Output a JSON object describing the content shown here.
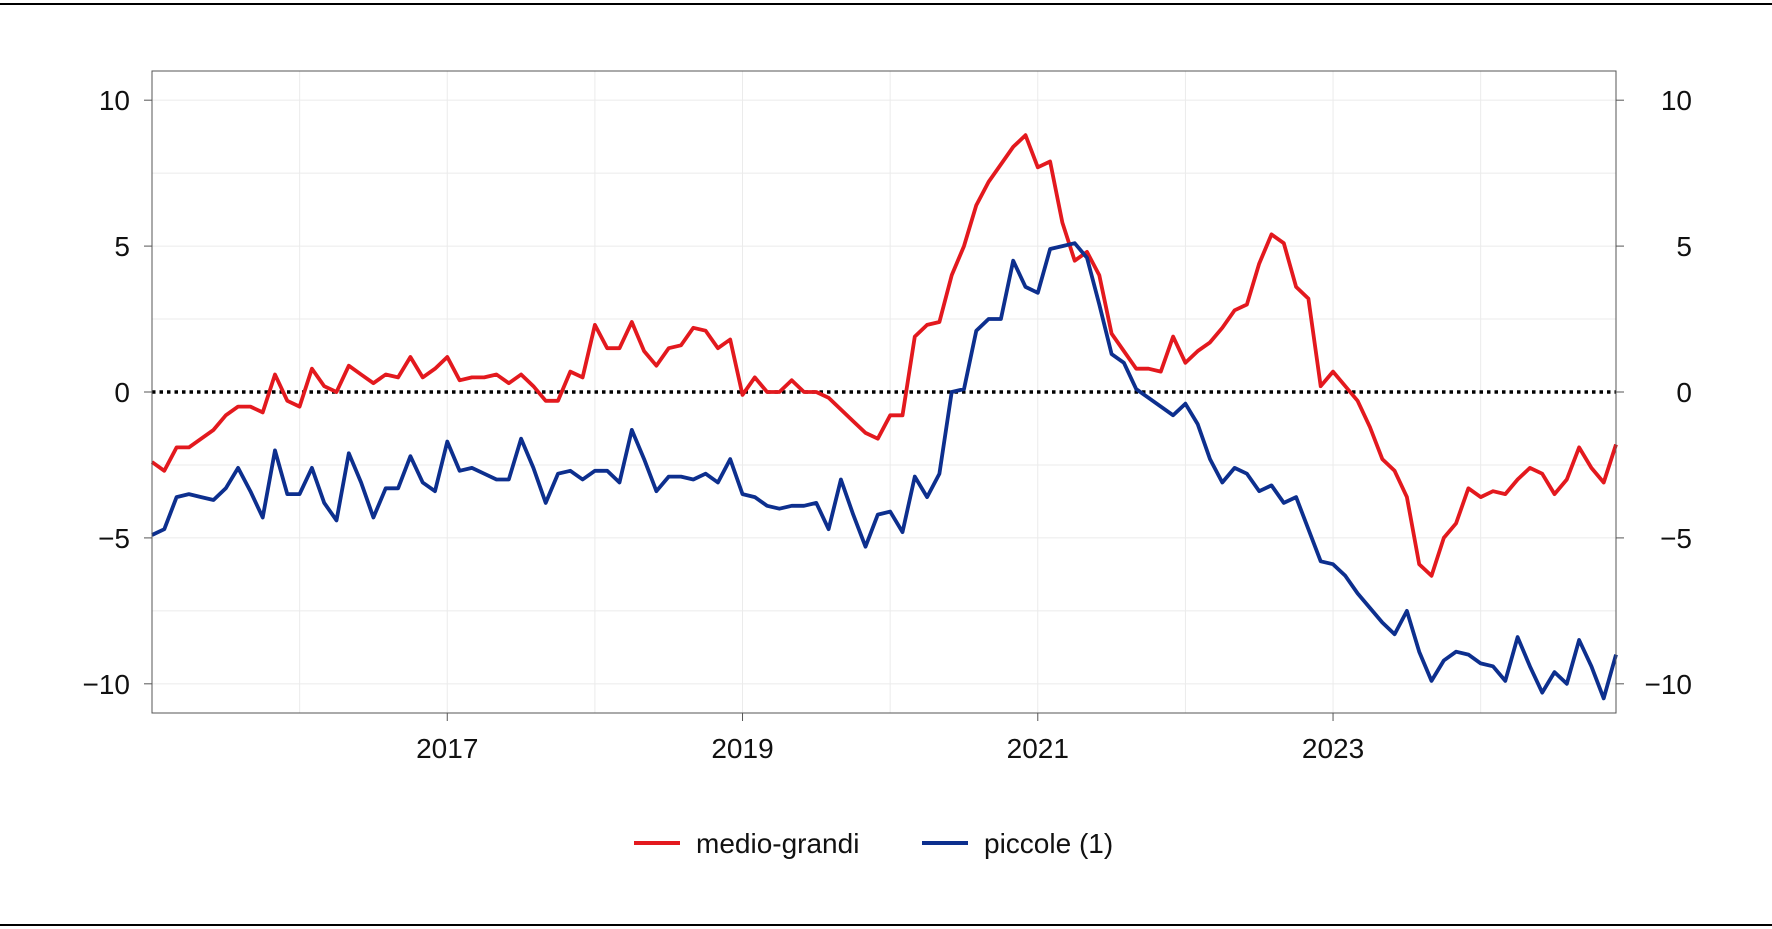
{
  "chart_data": {
    "type": "line",
    "title": "",
    "xlabel": "",
    "ylabel": "",
    "ylim": [
      -11,
      11
    ],
    "xlim": [
      "2015-01",
      "2024-12"
    ],
    "yticks": [
      -10,
      -5,
      0,
      5,
      10
    ],
    "yticks_labels": [
      "−10",
      "−5",
      "0",
      "5",
      "10"
    ],
    "xticks_labels": [
      "2017",
      "2019",
      "2021",
      "2023"
    ],
    "grid": true,
    "reference_line": {
      "y": 0,
      "style": "dotted"
    },
    "legend_position": "bottom-center",
    "series": [
      {
        "name": "medio-grandi",
        "color": "#e3191e",
        "points": [
          [
            "2015-01",
            -2.4
          ],
          [
            "2015-02",
            -2.7
          ],
          [
            "2015-03",
            -1.9
          ],
          [
            "2015-04",
            -1.9
          ],
          [
            "2015-05",
            -1.6
          ],
          [
            "2015-06",
            -1.3
          ],
          [
            "2015-07",
            -0.8
          ],
          [
            "2015-08",
            -0.5
          ],
          [
            "2015-09",
            -0.5
          ],
          [
            "2015-10",
            -0.7
          ],
          [
            "2015-11",
            0.6
          ],
          [
            "2015-12",
            -0.3
          ],
          [
            "2016-01",
            -0.5
          ],
          [
            "2016-02",
            0.8
          ],
          [
            "2016-03",
            0.2
          ],
          [
            "2016-04",
            0.0
          ],
          [
            "2016-05",
            0.9
          ],
          [
            "2016-06",
            0.6
          ],
          [
            "2016-07",
            0.3
          ],
          [
            "2016-08",
            0.6
          ],
          [
            "2016-09",
            0.5
          ],
          [
            "2016-10",
            1.2
          ],
          [
            "2016-11",
            0.5
          ],
          [
            "2016-12",
            0.8
          ],
          [
            "2017-01",
            1.2
          ],
          [
            "2017-02",
            0.4
          ],
          [
            "2017-03",
            0.5
          ],
          [
            "2017-04",
            0.5
          ],
          [
            "2017-05",
            0.6
          ],
          [
            "2017-06",
            0.3
          ],
          [
            "2017-07",
            0.6
          ],
          [
            "2017-08",
            0.2
          ],
          [
            "2017-09",
            -0.3
          ],
          [
            "2017-10",
            -0.3
          ],
          [
            "2017-11",
            0.7
          ],
          [
            "2017-12",
            0.5
          ],
          [
            "2018-01",
            2.3
          ],
          [
            "2018-02",
            1.5
          ],
          [
            "2018-03",
            1.5
          ],
          [
            "2018-04",
            2.4
          ],
          [
            "2018-05",
            1.4
          ],
          [
            "2018-06",
            0.9
          ],
          [
            "2018-07",
            1.5
          ],
          [
            "2018-08",
            1.6
          ],
          [
            "2018-09",
            2.2
          ],
          [
            "2018-10",
            2.1
          ],
          [
            "2018-11",
            1.5
          ],
          [
            "2018-12",
            1.8
          ],
          [
            "2019-01",
            -0.1
          ],
          [
            "2019-02",
            0.5
          ],
          [
            "2019-03",
            0.0
          ],
          [
            "2019-04",
            0.0
          ],
          [
            "2019-05",
            0.4
          ],
          [
            "2019-06",
            0.0
          ],
          [
            "2019-07",
            0.0
          ],
          [
            "2019-08",
            -0.2
          ],
          [
            "2019-09",
            -0.6
          ],
          [
            "2019-10",
            -1.0
          ],
          [
            "2019-11",
            -1.4
          ],
          [
            "2019-12",
            -1.6
          ],
          [
            "2020-01",
            -0.8
          ],
          [
            "2020-02",
            -0.8
          ],
          [
            "2020-03",
            1.9
          ],
          [
            "2020-04",
            2.3
          ],
          [
            "2020-05",
            2.4
          ],
          [
            "2020-06",
            4.0
          ],
          [
            "2020-07",
            5.0
          ],
          [
            "2020-08",
            6.4
          ],
          [
            "2020-09",
            7.2
          ],
          [
            "2020-10",
            7.8
          ],
          [
            "2020-11",
            8.4
          ],
          [
            "2020-12",
            8.8
          ],
          [
            "2021-01",
            7.7
          ],
          [
            "2021-02",
            7.9
          ],
          [
            "2021-03",
            5.8
          ],
          [
            "2021-04",
            4.5
          ],
          [
            "2021-05",
            4.8
          ],
          [
            "2021-06",
            4.0
          ],
          [
            "2021-07",
            2.0
          ],
          [
            "2021-08",
            1.4
          ],
          [
            "2021-09",
            0.8
          ],
          [
            "2021-10",
            0.8
          ],
          [
            "2021-11",
            0.7
          ],
          [
            "2021-12",
            1.9
          ],
          [
            "2022-01",
            1.0
          ],
          [
            "2022-02",
            1.4
          ],
          [
            "2022-03",
            1.7
          ],
          [
            "2022-04",
            2.2
          ],
          [
            "2022-05",
            2.8
          ],
          [
            "2022-06",
            3.0
          ],
          [
            "2022-07",
            4.4
          ],
          [
            "2022-08",
            5.4
          ],
          [
            "2022-09",
            5.1
          ],
          [
            "2022-10",
            3.6
          ],
          [
            "2022-11",
            3.2
          ],
          [
            "2022-12",
            0.2
          ],
          [
            "2023-01",
            0.7
          ],
          [
            "2023-02",
            0.2
          ],
          [
            "2023-03",
            -0.3
          ],
          [
            "2023-04",
            -1.2
          ],
          [
            "2023-05",
            -2.3
          ],
          [
            "2023-06",
            -2.7
          ],
          [
            "2023-07",
            -3.6
          ],
          [
            "2023-08",
            -5.9
          ],
          [
            "2023-09",
            -6.3
          ],
          [
            "2023-10",
            -5.0
          ],
          [
            "2023-11",
            -4.5
          ],
          [
            "2023-12",
            -3.3
          ],
          [
            "2024-01",
            -3.6
          ],
          [
            "2024-02",
            -3.4
          ],
          [
            "2024-03",
            -3.5
          ],
          [
            "2024-04",
            -3.0
          ],
          [
            "2024-05",
            -2.6
          ],
          [
            "2024-06",
            -2.8
          ],
          [
            "2024-07",
            -3.5
          ],
          [
            "2024-08",
            -3.0
          ],
          [
            "2024-09",
            -1.9
          ],
          [
            "2024-10",
            -2.6
          ],
          [
            "2024-11",
            -3.1
          ],
          [
            "2024-12",
            -1.8
          ]
        ]
      },
      {
        "name": "piccole (1)",
        "color": "#0d2f8e",
        "points": [
          [
            "2015-01",
            -4.9
          ],
          [
            "2015-02",
            -4.7
          ],
          [
            "2015-03",
            -3.6
          ],
          [
            "2015-04",
            -3.5
          ],
          [
            "2015-05",
            -3.6
          ],
          [
            "2015-06",
            -3.7
          ],
          [
            "2015-07",
            -3.3
          ],
          [
            "2015-08",
            -2.6
          ],
          [
            "2015-09",
            -3.4
          ],
          [
            "2015-10",
            -4.3
          ],
          [
            "2015-11",
            -2.0
          ],
          [
            "2015-12",
            -3.5
          ],
          [
            "2016-01",
            -3.5
          ],
          [
            "2016-02",
            -2.6
          ],
          [
            "2016-03",
            -3.8
          ],
          [
            "2016-04",
            -4.4
          ],
          [
            "2016-05",
            -2.1
          ],
          [
            "2016-06",
            -3.1
          ],
          [
            "2016-07",
            -4.3
          ],
          [
            "2016-08",
            -3.3
          ],
          [
            "2016-09",
            -3.3
          ],
          [
            "2016-10",
            -2.2
          ],
          [
            "2016-11",
            -3.1
          ],
          [
            "2016-12",
            -3.4
          ],
          [
            "2017-01",
            -1.7
          ],
          [
            "2017-02",
            -2.7
          ],
          [
            "2017-03",
            -2.6
          ],
          [
            "2017-04",
            -2.8
          ],
          [
            "2017-05",
            -3.0
          ],
          [
            "2017-06",
            -3.0
          ],
          [
            "2017-07",
            -1.6
          ],
          [
            "2017-08",
            -2.6
          ],
          [
            "2017-09",
            -3.8
          ],
          [
            "2017-10",
            -2.8
          ],
          [
            "2017-11",
            -2.7
          ],
          [
            "2017-12",
            -3.0
          ],
          [
            "2018-01",
            -2.7
          ],
          [
            "2018-02",
            -2.7
          ],
          [
            "2018-03",
            -3.1
          ],
          [
            "2018-04",
            -1.3
          ],
          [
            "2018-05",
            -2.3
          ],
          [
            "2018-06",
            -3.4
          ],
          [
            "2018-07",
            -2.9
          ],
          [
            "2018-08",
            -2.9
          ],
          [
            "2018-09",
            -3.0
          ],
          [
            "2018-10",
            -2.8
          ],
          [
            "2018-11",
            -3.1
          ],
          [
            "2018-12",
            -2.3
          ],
          [
            "2019-01",
            -3.5
          ],
          [
            "2019-02",
            -3.6
          ],
          [
            "2019-03",
            -3.9
          ],
          [
            "2019-04",
            -4.0
          ],
          [
            "2019-05",
            -3.9
          ],
          [
            "2019-06",
            -3.9
          ],
          [
            "2019-07",
            -3.8
          ],
          [
            "2019-08",
            -4.7
          ],
          [
            "2019-09",
            -3.0
          ],
          [
            "2019-10",
            -4.2
          ],
          [
            "2019-11",
            -5.3
          ],
          [
            "2019-12",
            -4.2
          ],
          [
            "2020-01",
            -4.1
          ],
          [
            "2020-02",
            -4.8
          ],
          [
            "2020-03",
            -2.9
          ],
          [
            "2020-04",
            -3.6
          ],
          [
            "2020-05",
            -2.8
          ],
          [
            "2020-06",
            0.0
          ],
          [
            "2020-07",
            0.1
          ],
          [
            "2020-08",
            2.1
          ],
          [
            "2020-09",
            2.5
          ],
          [
            "2020-10",
            2.5
          ],
          [
            "2020-11",
            4.5
          ],
          [
            "2020-12",
            3.6
          ],
          [
            "2021-01",
            3.4
          ],
          [
            "2021-02",
            4.9
          ],
          [
            "2021-03",
            5.0
          ],
          [
            "2021-04",
            5.1
          ],
          [
            "2021-05",
            4.6
          ],
          [
            "2021-06",
            3.0
          ],
          [
            "2021-07",
            1.3
          ],
          [
            "2021-08",
            1.0
          ],
          [
            "2021-09",
            0.1
          ],
          [
            "2021-10",
            -0.2
          ],
          [
            "2021-11",
            -0.5
          ],
          [
            "2021-12",
            -0.8
          ],
          [
            "2022-01",
            -0.4
          ],
          [
            "2022-02",
            -1.1
          ],
          [
            "2022-03",
            -2.3
          ],
          [
            "2022-04",
            -3.1
          ],
          [
            "2022-05",
            -2.6
          ],
          [
            "2022-06",
            -2.8
          ],
          [
            "2022-07",
            -3.4
          ],
          [
            "2022-08",
            -3.2
          ],
          [
            "2022-09",
            -3.8
          ],
          [
            "2022-10",
            -3.6
          ],
          [
            "2022-11",
            -4.7
          ],
          [
            "2022-12",
            -5.8
          ],
          [
            "2023-01",
            -5.9
          ],
          [
            "2023-02",
            -6.3
          ],
          [
            "2023-03",
            -6.9
          ],
          [
            "2023-04",
            -7.4
          ],
          [
            "2023-05",
            -7.9
          ],
          [
            "2023-06",
            -8.3
          ],
          [
            "2023-07",
            -7.5
          ],
          [
            "2023-08",
            -8.9
          ],
          [
            "2023-09",
            -9.9
          ],
          [
            "2023-10",
            -9.2
          ],
          [
            "2023-11",
            -8.9
          ],
          [
            "2023-12",
            -9.0
          ],
          [
            "2024-01",
            -9.3
          ],
          [
            "2024-02",
            -9.4
          ],
          [
            "2024-03",
            -9.9
          ],
          [
            "2024-04",
            -8.4
          ],
          [
            "2024-05",
            -9.4
          ],
          [
            "2024-06",
            -10.3
          ],
          [
            "2024-07",
            -9.6
          ],
          [
            "2024-08",
            -10.0
          ],
          [
            "2024-09",
            -8.5
          ],
          [
            "2024-10",
            -9.4
          ],
          [
            "2024-11",
            -10.5
          ],
          [
            "2024-12",
            -9.0
          ]
        ]
      }
    ]
  }
}
